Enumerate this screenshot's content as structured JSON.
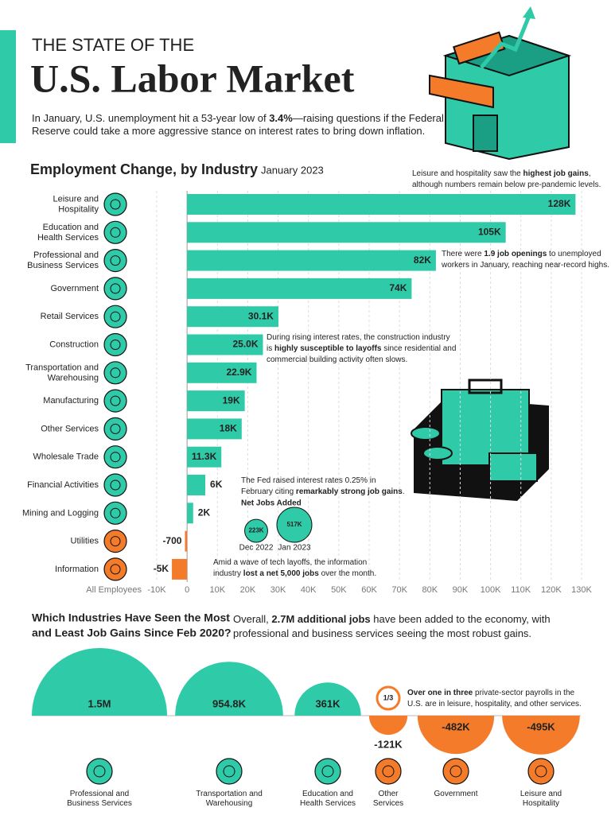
{
  "header": {
    "kicker": "THE STATE OF THE",
    "title": "U.S. Labor Market",
    "intro": [
      [
        "In January, U.S. unemployment hit a 53-year low of ",
        {
          "text": "3.4%",
          "bold": true
        },
        "—raising questions if the Federal"
      ],
      [
        "Reserve could take a more aggressive stance on interest rates to bring down inflation."
      ]
    ]
  },
  "chart_data": [
    {
      "type": "bar",
      "orientation": "horizontal",
      "title": "Employment Change, by Industry",
      "subtitle": "January 2023",
      "x_label": "All Employees",
      "categories": [
        [
          "Leisure and",
          "Hospitality"
        ],
        [
          "Education and",
          "Health Services"
        ],
        [
          "Professional and",
          "Business Services"
        ],
        [
          "Government"
        ],
        [
          "Retail Services"
        ],
        [
          "Construction"
        ],
        [
          "Transportation and",
          "Warehousing"
        ],
        [
          "Manufacturing"
        ],
        [
          "Other Services"
        ],
        [
          "Wholesale Trade"
        ],
        [
          "Financial Activities"
        ],
        [
          "Mining and Logging"
        ],
        [
          "Utilities"
        ],
        [
          "Information"
        ]
      ],
      "values": [
        128000,
        105000,
        82000,
        74000,
        30100,
        25000,
        22900,
        19000,
        18000,
        11300,
        6000,
        2000,
        -700,
        -5000
      ],
      "value_labels": [
        "128K",
        "105K",
        "82K",
        "74K",
        "30.1K",
        "25.0K",
        "22.9K",
        "19K",
        "18K",
        "11.3K",
        "6K",
        "2K",
        "-700",
        "-5K"
      ],
      "color": "#2fcaa8",
      "negative_color": "#f47b2a",
      "xlim": [
        -10000,
        130000
      ],
      "xticks": [
        {
          "value": -10000,
          "label": "-10K"
        },
        0,
        {
          "value": 10000,
          "label": "10K"
        },
        {
          "value": 20000,
          "label": "20K"
        },
        {
          "value": 30000,
          "label": "30K"
        },
        {
          "value": 40000,
          "label": "40K"
        },
        {
          "value": 50000,
          "label": "50K"
        },
        {
          "value": 60000,
          "label": "60K"
        },
        {
          "value": 70000,
          "label": "70K"
        },
        {
          "value": 80000,
          "label": "80K"
        },
        {
          "value": 90000,
          "label": "90K"
        },
        {
          "value": 100000,
          "label": "100K"
        },
        {
          "value": 110000,
          "label": "110K"
        },
        {
          "value": 120000,
          "label": "120K"
        },
        {
          "value": 130000,
          "label": "130K"
        }
      ],
      "grid": true,
      "annotations": [
        {
          "lines": [
            [
              "Leisure and hospitality saw the ",
              {
                "text": "highest job gains",
                "bold": true
              },
              ","
            ],
            [
              "although numbers remain below pre-pandemic levels."
            ]
          ]
        },
        {
          "lines": [
            [
              "There were ",
              {
                "text": "1.9 job openings",
                "bold": true
              },
              " to unemployed"
            ],
            [
              "workers in January, reaching near-record highs."
            ]
          ]
        },
        {
          "lines": [
            [
              "During rising interest rates, the construction industry"
            ],
            [
              "is ",
              {
                "text": "highly susceptible to layoffs",
                "bold": true
              },
              " since residential and"
            ],
            [
              "commercial building activity often slows."
            ]
          ]
        },
        {
          "lines": [
            [
              "The Fed raised interest rates 0.25% in"
            ],
            [
              "February citing ",
              {
                "text": "remarkably strong job gains",
                "bold": true
              },
              "."
            ]
          ]
        },
        {
          "lines": [
            [
              "Amid a wave of tech layoffs, the information"
            ],
            [
              "industry ",
              {
                "text": "lost a net 5,000 jobs",
                "bold": true
              },
              " over the month."
            ]
          ]
        }
      ]
    },
    {
      "type": "bubble",
      "title": "Net Jobs Added",
      "categories": [
        "Dec 2022",
        "Jan 2023"
      ],
      "values": [
        223000,
        517000
      ],
      "value_labels": [
        "223K",
        "517K"
      ],
      "color": "#2fcaa8"
    },
    {
      "type": "semicircle",
      "title": [
        "Which Industries Have Seen the Most",
        "and Least Job Gains Since Feb 2020?"
      ],
      "subtitle": [
        [
          "Overall, ",
          {
            "text": "2.7M additional jobs",
            "bold": true
          },
          " have been added to the economy, with"
        ],
        [
          "professional and business services seeing the most robust gains."
        ]
      ],
      "categories": [
        [
          "Professional and",
          "Business Services"
        ],
        [
          "Transportation and",
          "Warehousing"
        ],
        [
          "Education and",
          "Health Services"
        ],
        [
          "Other",
          "Services"
        ],
        [
          "Government"
        ],
        [
          "Leisure and",
          "Hospitality"
        ]
      ],
      "values": [
        1500000,
        954800,
        361000,
        -121000,
        -482000,
        -495000
      ],
      "value_labels": [
        "1.5M",
        "954.8K",
        "361K",
        "-121K",
        "-482K",
        "-495K"
      ],
      "color": "#2fcaa8",
      "negative_color": "#f47b2a",
      "callout": {
        "badge": "1/3",
        "lines": [
          [
            {
              "text": "Over one in three",
              "bold": true
            },
            " private-sector payrolls in the"
          ],
          [
            "U.S. are in leisure, hospitality, and other services."
          ]
        ]
      }
    }
  ]
}
